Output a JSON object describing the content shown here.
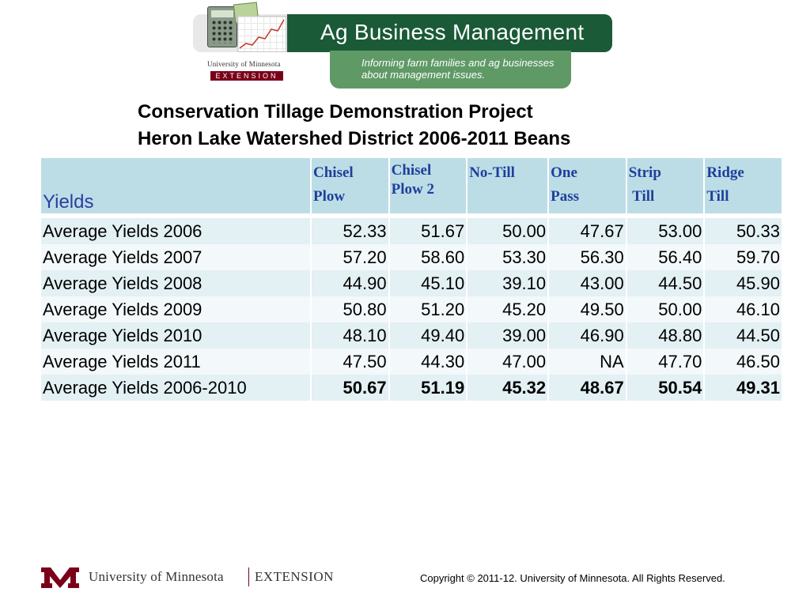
{
  "header": {
    "banner_title": "Ag Business Management",
    "banner_subtitle": "Informing farm families and ag businesses about management issues.",
    "university": "University of Minnesota",
    "extension": "EXTENSION"
  },
  "title": {
    "line1": "Conservation Tillage Demonstration Project",
    "line2": "Heron Lake Watershed District 2006-2011  Beans"
  },
  "table": {
    "corner_label": "Yields",
    "columns": [
      {
        "line1": "Chisel",
        "line2": "Plow"
      },
      {
        "line1": "Chisel",
        "line2": "Plow 2"
      },
      {
        "line1": "No-Till",
        "line2": ""
      },
      {
        "line1": "One",
        "line2": "Pass"
      },
      {
        "line1": "Strip",
        "line2": " Till"
      },
      {
        "line1": "Ridge",
        "line2": "Till"
      }
    ],
    "rows": [
      {
        "label": "Average Yields 2006",
        "values": [
          "52.33",
          "51.67",
          "50.00",
          "47.67",
          "53.00",
          "50.33"
        ]
      },
      {
        "label": "Average Yields 2007",
        "values": [
          "57.20",
          "58.60",
          "53.30",
          "56.30",
          "56.40",
          "59.70"
        ]
      },
      {
        "label": "Average Yields 2008",
        "values": [
          "44.90",
          "45.10",
          "39.10",
          "43.00",
          "44.50",
          "45.90"
        ]
      },
      {
        "label": "Average Yields 2009",
        "values": [
          "50.80",
          "51.20",
          "45.20",
          "49.50",
          "50.00",
          "46.10"
        ]
      },
      {
        "label": "Average Yields 2010",
        "values": [
          "48.10",
          "49.40",
          "39.00",
          "46.90",
          "48.80",
          "44.50"
        ]
      },
      {
        "label": "Average Yields 2011",
        "values": [
          "47.50",
          "44.30",
          "47.00",
          "NA",
          "47.70",
          "46.50"
        ]
      },
      {
        "label": "Average Yields 2006-2010",
        "values": [
          "50.67",
          "51.19",
          "45.32",
          "48.67",
          "50.54",
          "49.31"
        ]
      }
    ]
  },
  "footer": {
    "university": "University of Minnesota",
    "extension": "EXTENSION",
    "copyright": "Copyright © 2011-12. University of Minnesota. All Rights Reserved."
  },
  "colors": {
    "banner_green": "#1b5a37",
    "banner_light_green": "#5f9a66",
    "header_fill": "#bcdde6",
    "header_text": "#1f3f9a",
    "row_fill": "#e3f0f4",
    "umn_maroon": "#7a0019"
  }
}
